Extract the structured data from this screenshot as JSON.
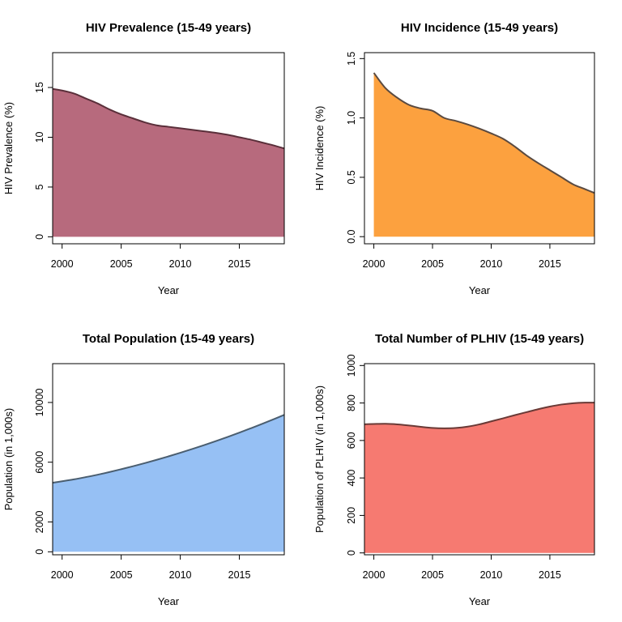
{
  "chart_data": [
    {
      "type": "area",
      "title": "HIV Prevalence (15-49 years)",
      "xlabel": "Year",
      "ylabel": "HIV Prevalence (%)",
      "xlim": [
        1999.2,
        2018.8
      ],
      "ylim": [
        -0.7,
        18.5
      ],
      "xticks": [
        2000,
        2005,
        2010,
        2015
      ],
      "yticks": [
        0,
        5,
        10,
        15
      ],
      "fill": "#B76A7D",
      "stroke": "#5A2F3A",
      "x": [
        1999,
        2000,
        2001,
        2002,
        2003,
        2004,
        2005,
        2006,
        2007,
        2008,
        2009,
        2010,
        2011,
        2012,
        2013,
        2014,
        2015,
        2016,
        2017,
        2018,
        2019
      ],
      "values": [
        14.9,
        14.7,
        14.4,
        13.9,
        13.4,
        12.8,
        12.3,
        11.9,
        11.5,
        11.2,
        11.05,
        10.9,
        10.75,
        10.6,
        10.45,
        10.25,
        10.0,
        9.75,
        9.45,
        9.15,
        8.8
      ]
    },
    {
      "type": "area",
      "title": "HIV Incidence (15-49 years)",
      "xlabel": "Year",
      "ylabel": "HIV Incidence (%)",
      "xlim": [
        1999.2,
        2018.8
      ],
      "ylim": [
        -0.06,
        1.55
      ],
      "xticks": [
        2000,
        2005,
        2010,
        2015
      ],
      "yticks": [
        0.0,
        0.5,
        1.0,
        1.5
      ],
      "ytick_labels": [
        "0.0",
        "0.5",
        "1.0",
        "1.5"
      ],
      "fill": "#FCA13F",
      "stroke": "#5A4A40",
      "x": [
        2000,
        2001,
        2002,
        2003,
        2004,
        2005,
        2006,
        2007,
        2008,
        2009,
        2010,
        2011,
        2012,
        2013,
        2014,
        2015,
        2016,
        2017,
        2018,
        2019
      ],
      "values": [
        1.38,
        1.25,
        1.17,
        1.11,
        1.08,
        1.06,
        1.0,
        0.975,
        0.945,
        0.91,
        0.87,
        0.825,
        0.76,
        0.685,
        0.62,
        0.56,
        0.5,
        0.44,
        0.4,
        0.36
      ]
    },
    {
      "type": "area",
      "title": "Total Population (15-49 years)",
      "xlabel": "Year",
      "ylabel": "Population (in 1,000s)",
      "xlim": [
        1999.2,
        2018.8
      ],
      "ylim": [
        -200,
        12600
      ],
      "xticks": [
        2000,
        2005,
        2010,
        2015
      ],
      "yticks": [
        0,
        2000,
        6000,
        10000
      ],
      "fill": "#96C0F4",
      "stroke": "#4A5E70",
      "x": [
        1999,
        2000,
        2001,
        2002,
        2003,
        2004,
        2005,
        2006,
        2007,
        2008,
        2009,
        2010,
        2011,
        2012,
        2013,
        2014,
        2015,
        2016,
        2017,
        2018,
        2019
      ],
      "values": [
        4600,
        4720,
        4850,
        5000,
        5160,
        5340,
        5530,
        5730,
        5940,
        6160,
        6390,
        6630,
        6880,
        7140,
        7410,
        7690,
        7980,
        8280,
        8590,
        8910,
        9240
      ]
    },
    {
      "type": "area",
      "title": "Total Number of PLHIV (15-49 years)",
      "xlabel": "Year",
      "ylabel": "Population of PLHIV (in 1,000s)",
      "xlim": [
        1999.2,
        2018.8
      ],
      "ylim": [
        -10,
        1010
      ],
      "xticks": [
        2000,
        2005,
        2010,
        2015
      ],
      "yticks": [
        0,
        200,
        400,
        600,
        800,
        1000
      ],
      "fill": "#F67A71",
      "stroke": "#6A3A36",
      "x": [
        1999,
        2000,
        2001,
        2002,
        2003,
        2004,
        2005,
        2006,
        2007,
        2008,
        2009,
        2010,
        2011,
        2012,
        2013,
        2014,
        2015,
        2016,
        2017,
        2018,
        2019
      ],
      "values": [
        686,
        688,
        689,
        686,
        680,
        673,
        667,
        665,
        667,
        674,
        686,
        702,
        718,
        735,
        751,
        767,
        781,
        792,
        799,
        802,
        802
      ]
    }
  ]
}
